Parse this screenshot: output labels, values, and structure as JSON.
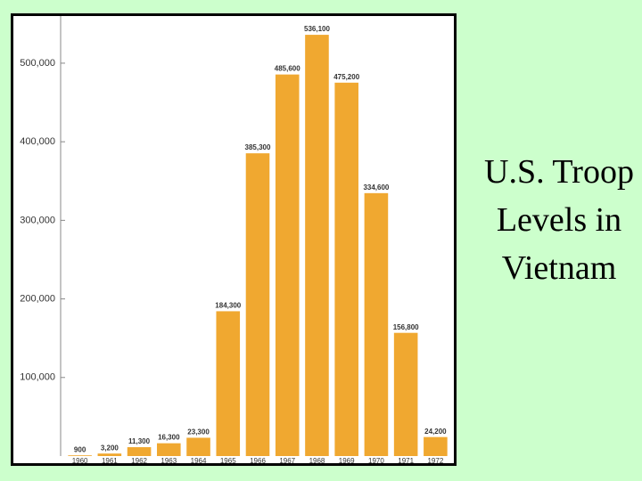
{
  "chart_data": {
    "type": "bar",
    "title": "U.S. Troop Levels in Vietnam",
    "categories": [
      "1960",
      "1961",
      "1962",
      "1963",
      "1964",
      "1965",
      "1966",
      "1967",
      "1968",
      "1969",
      "1970",
      "1971",
      "1972"
    ],
    "values": [
      900,
      3200,
      11300,
      16300,
      23300,
      184300,
      385300,
      485600,
      536100,
      475200,
      334600,
      156800,
      24200
    ],
    "value_labels": [
      "900",
      "3,200",
      "11,300",
      "16,300",
      "23,300",
      "184,300",
      "385,300",
      "485,600",
      "536,100",
      "475,200",
      "334,600",
      "156,800",
      "24,200"
    ],
    "color": "#f0a830",
    "ylim": [
      0,
      560000
    ],
    "yticks": [
      {
        "value": 100000,
        "label": "100,000"
      },
      {
        "value": 200000,
        "label": "200,000"
      },
      {
        "value": 300000,
        "label": "300,000"
      },
      {
        "value": 400000,
        "label": "400,000"
      },
      {
        "value": 500000,
        "label": "500,000"
      }
    ]
  }
}
